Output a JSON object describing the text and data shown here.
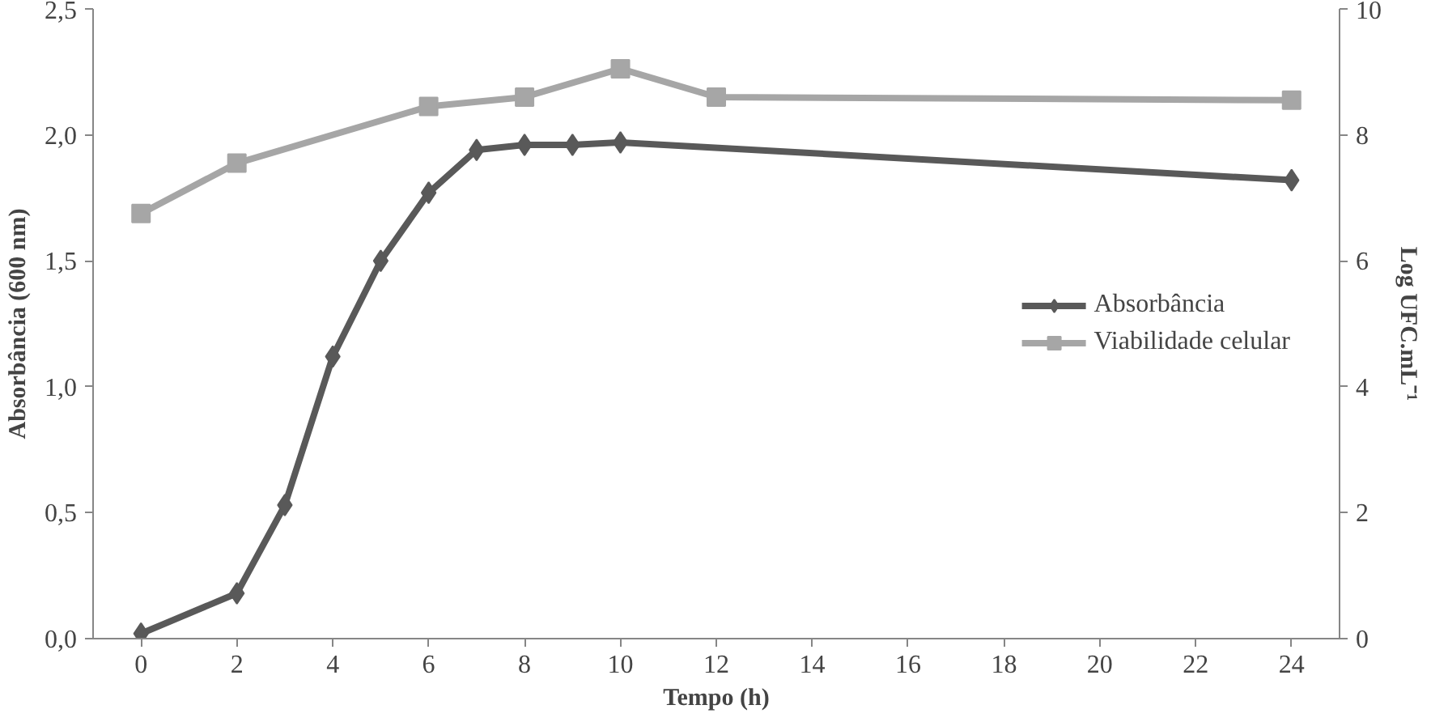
{
  "chart_data": {
    "type": "line",
    "xlabel": "Tempo (h)",
    "ylabel": "Absorbância (600 nm)",
    "y2label": "Log UFC.mL⁻¹",
    "xlim": [
      -1,
      25
    ],
    "xticks": [
      0,
      2,
      4,
      6,
      8,
      10,
      12,
      14,
      16,
      18,
      20,
      22,
      24
    ],
    "ylim": [
      0,
      2.5
    ],
    "yticks": [
      {
        "value": 0,
        "label": "0,0"
      },
      {
        "value": 0.5,
        "label": "0,5"
      },
      {
        "value": 1,
        "label": "1,0"
      },
      {
        "value": 1.5,
        "label": "1,5"
      },
      {
        "value": 2,
        "label": "2,0"
      },
      {
        "value": 2.5,
        "label": "2,5"
      }
    ],
    "y2lim": [
      0,
      10
    ],
    "y2ticks": [
      0,
      2,
      4,
      6,
      8,
      10
    ],
    "grid": false,
    "legend": "right",
    "series": [
      {
        "name": "Absorbância",
        "color": "#595959",
        "marker": "diamond",
        "x": [
          0,
          2,
          3,
          4,
          5,
          6,
          7,
          8,
          9,
          10,
          24
        ],
        "values": [
          0.02,
          0.18,
          0.53,
          1.12,
          1.5,
          1.77,
          1.94,
          1.96,
          1.96,
          1.97,
          1.82
        ]
      },
      {
        "name": "Viabilidade celular",
        "color": "#a6a6a6",
        "marker": "square",
        "axis": "y2",
        "x": [
          0,
          2,
          6,
          8,
          10,
          12,
          24
        ],
        "values": [
          6.75,
          7.55,
          8.45,
          8.6,
          9.05,
          8.6,
          8.55
        ]
      }
    ]
  }
}
